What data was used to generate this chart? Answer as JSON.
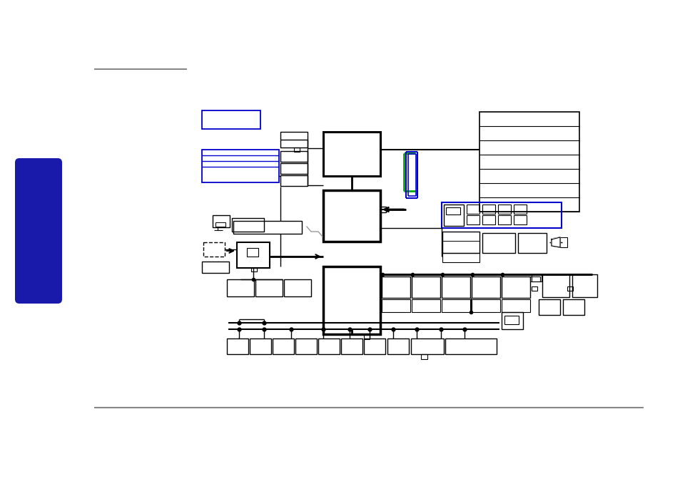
{
  "bg_color": "#ffffff",
  "gray_line_color": "#888888",
  "blue_color": "#0000cc",
  "green_color": "#00aa00",
  "black": "#000000",
  "sidebar_color": "#1a1aaa",
  "lw_thick": 2.5,
  "lw_med": 1.5,
  "lw_thin": 1.0
}
